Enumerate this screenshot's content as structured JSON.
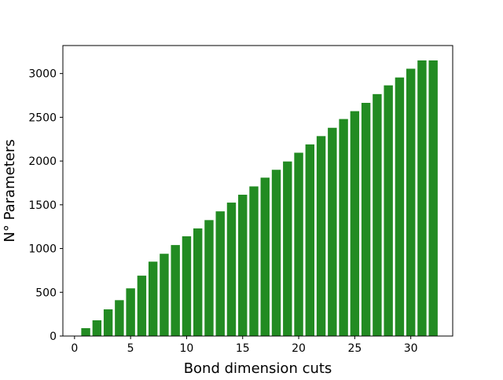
{
  "chart_data": {
    "type": "bar",
    "title": "",
    "xlabel": "Bond dimension cuts",
    "ylabel": "N° Parameters",
    "xlim": [
      -1.04,
      33.74
    ],
    "ylim": [
      0,
      3320
    ],
    "grid": false,
    "bar_color": "#228b22",
    "bar_width": 0.8,
    "x": [
      1,
      2,
      3,
      4,
      5,
      6,
      7,
      8,
      9,
      10,
      11,
      12,
      13,
      14,
      15,
      16,
      17,
      18,
      19,
      20,
      21,
      22,
      23,
      24,
      25,
      26,
      27,
      28,
      29,
      30,
      31,
      32
    ],
    "values": [
      90,
      180,
      305,
      410,
      545,
      690,
      850,
      940,
      1040,
      1140,
      1230,
      1325,
      1425,
      1525,
      1615,
      1710,
      1810,
      1900,
      1995,
      2095,
      2190,
      2285,
      2380,
      2480,
      2570,
      2665,
      2765,
      2865,
      2955,
      3055,
      3150,
      3150
    ],
    "xticks": [
      0,
      5,
      10,
      15,
      20,
      25,
      30
    ],
    "xtick_labels": [
      "0",
      "5",
      "10",
      "15",
      "20",
      "25",
      "30"
    ],
    "yticks": [
      0,
      500,
      1000,
      1500,
      2000,
      2500,
      3000
    ],
    "ytick_labels": [
      "0",
      "500",
      "1000",
      "1500",
      "2000",
      "2500",
      "3000"
    ]
  }
}
